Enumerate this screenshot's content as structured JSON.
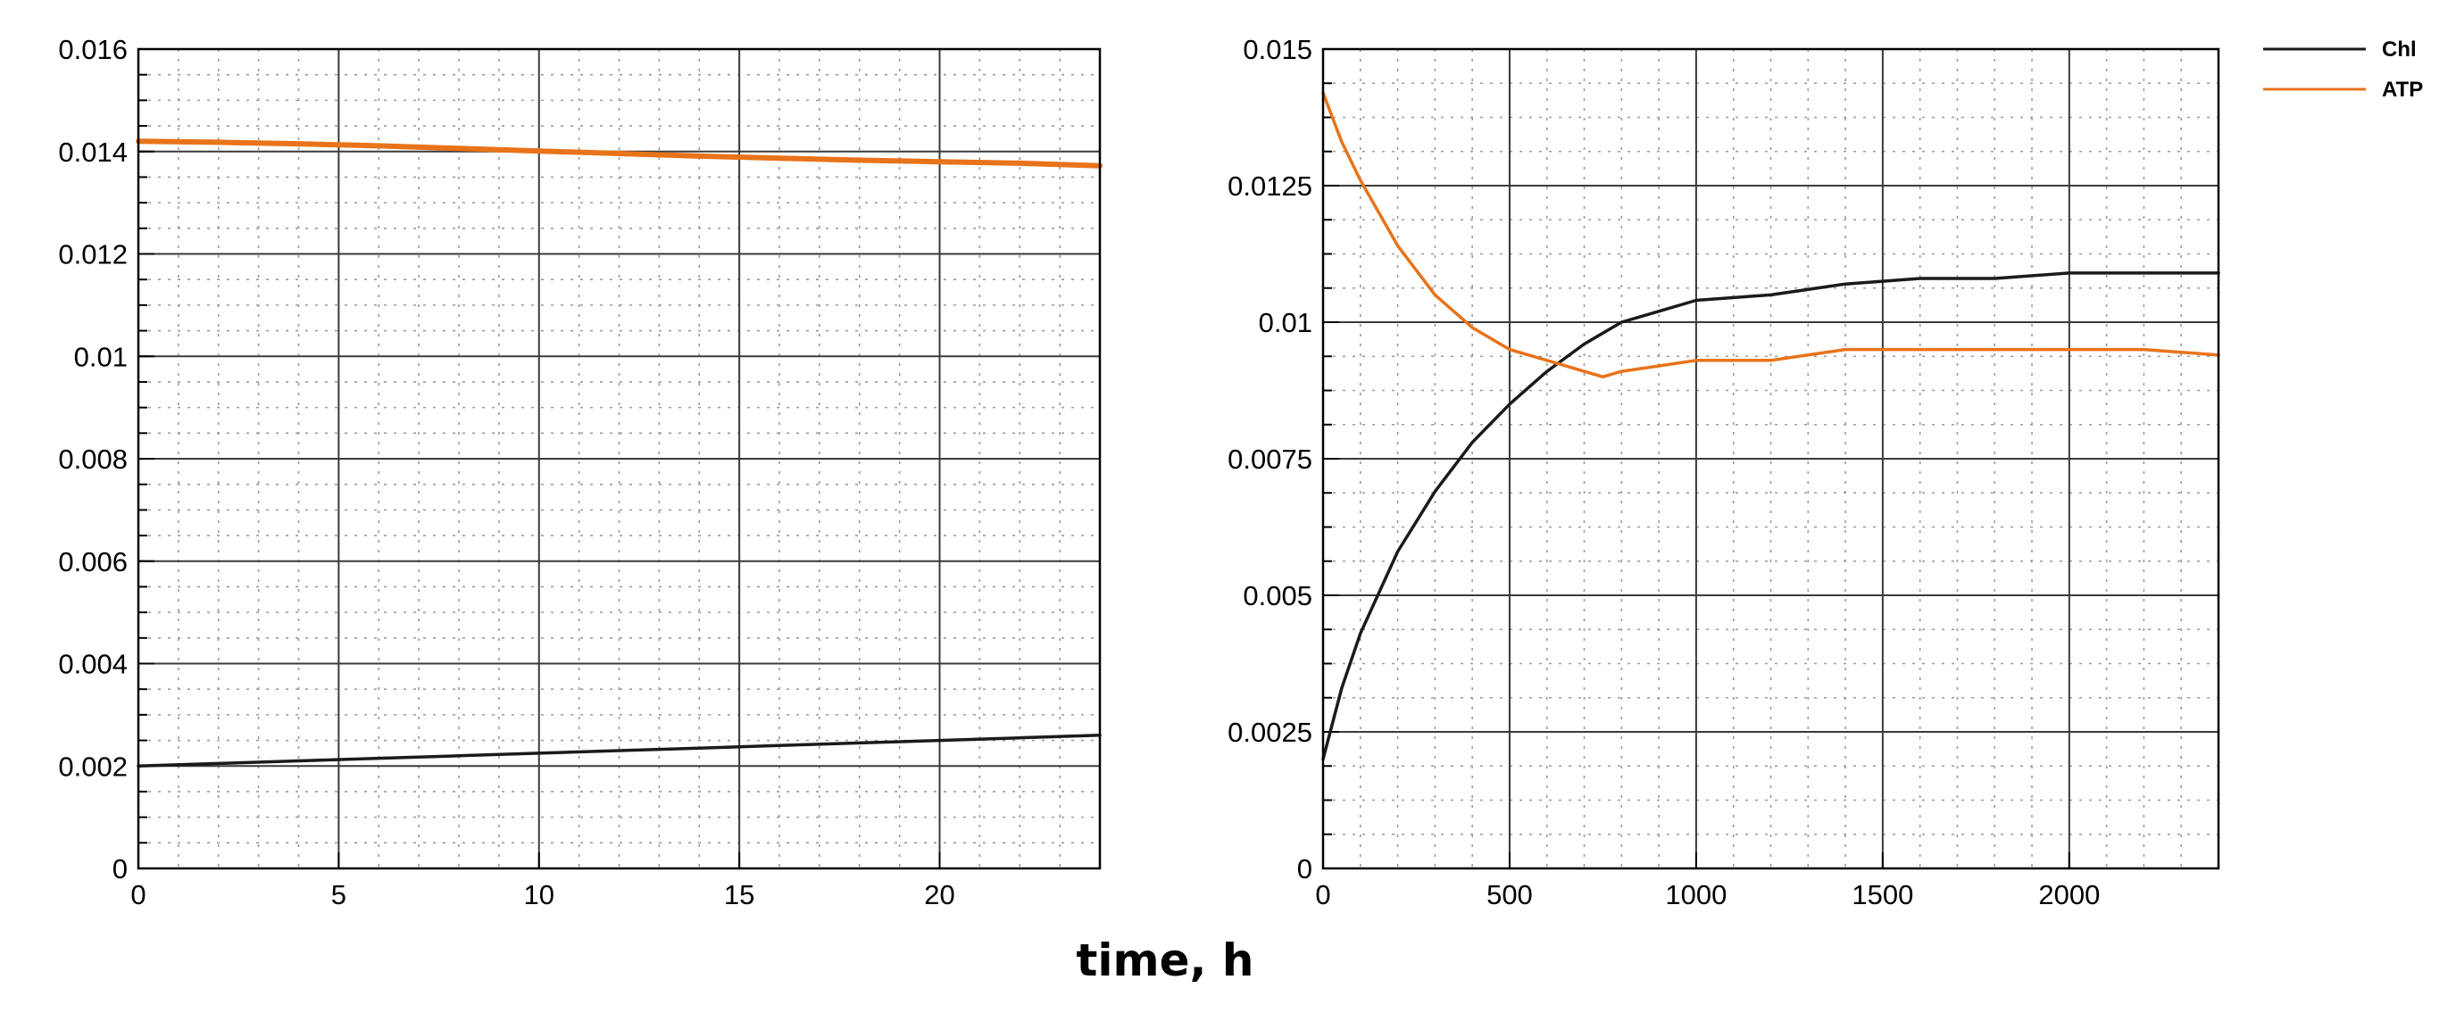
{
  "figure": {
    "xlabel": "time, h"
  },
  "legend": [
    {
      "name": "Chl",
      "color": "#1a1a1a"
    },
    {
      "name": "ATP",
      "color": "#e8731a"
    }
  ],
  "chart_data": [
    {
      "type": "line",
      "title": "",
      "xlabel": "time, h",
      "ylabel": "",
      "xlim": [
        0,
        24
      ],
      "ylim": [
        0,
        0.016
      ],
      "xticks": [
        0,
        5,
        10,
        15,
        20
      ],
      "xtick_labels": [
        "0",
        "5",
        "10",
        "15",
        "20"
      ],
      "yticks": [
        0,
        0.002,
        0.004,
        0.006,
        0.008,
        0.01,
        0.012,
        0.014,
        0.016
      ],
      "ytick_labels": [
        "0",
        "0.002",
        "0.004",
        "0.006",
        "0.008",
        "0.01",
        "0.012",
        "0.014",
        "0.016"
      ],
      "grid": true,
      "series": [
        {
          "name": "Chl",
          "color": "#1a1a1a",
          "x": [
            0,
            2,
            4,
            6,
            8,
            10,
            12,
            14,
            16,
            18,
            20,
            22,
            24
          ],
          "y": [
            0.002,
            0.00205,
            0.0021,
            0.00215,
            0.0022,
            0.00225,
            0.0023,
            0.00235,
            0.0024,
            0.00245,
            0.0025,
            0.00255,
            0.0026
          ]
        },
        {
          "name": "ATP",
          "color": "#e8731a",
          "x": [
            0,
            2,
            4,
            6,
            8,
            10,
            12,
            14,
            16,
            18,
            20,
            22,
            24
          ],
          "y": [
            0.0142,
            0.01418,
            0.01415,
            0.01411,
            0.01406,
            0.01401,
            0.01396,
            0.01391,
            0.01387,
            0.01383,
            0.0138,
            0.01377,
            0.01372
          ]
        }
      ]
    },
    {
      "type": "line",
      "title": "",
      "xlabel": "time, h",
      "ylabel": "",
      "xlim": [
        0,
        2400
      ],
      "ylim": [
        0,
        0.015
      ],
      "xticks": [
        0,
        500,
        1000,
        1500,
        2000
      ],
      "xtick_labels": [
        "0",
        "500",
        "1000",
        "1500",
        "2000"
      ],
      "yticks": [
        0,
        0.0025,
        0.005,
        0.0075,
        0.01,
        0.0125,
        0.015
      ],
      "ytick_labels": [
        "0",
        "0.0025",
        "0.005",
        "0.0075",
        "0.01",
        "0.0125",
        "0.015"
      ],
      "grid": true,
      "legend_position": "outside-top-right",
      "series": [
        {
          "name": "Chl",
          "color": "#1a1a1a",
          "x": [
            0,
            50,
            100,
            200,
            300,
            400,
            500,
            600,
            700,
            800,
            900,
            1000,
            1200,
            1400,
            1600,
            1800,
            2000,
            2200,
            2400
          ],
          "y": [
            0.002,
            0.0033,
            0.0043,
            0.0058,
            0.0069,
            0.0078,
            0.0085,
            0.0091,
            0.0096,
            0.01,
            0.0102,
            0.0104,
            0.0105,
            0.0107,
            0.0108,
            0.0108,
            0.0109,
            0.0109,
            0.0109
          ]
        },
        {
          "name": "ATP",
          "color": "#e8731a",
          "x": [
            0,
            50,
            100,
            200,
            300,
            400,
            500,
            600,
            700,
            750,
            800,
            900,
            1000,
            1200,
            1400,
            1600,
            1800,
            2000,
            2200,
            2400
          ],
          "y": [
            0.0142,
            0.0133,
            0.0126,
            0.0114,
            0.0105,
            0.0099,
            0.0095,
            0.0093,
            0.0091,
            0.009,
            0.0091,
            0.0092,
            0.0093,
            0.0093,
            0.0095,
            0.0095,
            0.0095,
            0.0095,
            0.0095,
            0.0094
          ]
        }
      ]
    }
  ]
}
